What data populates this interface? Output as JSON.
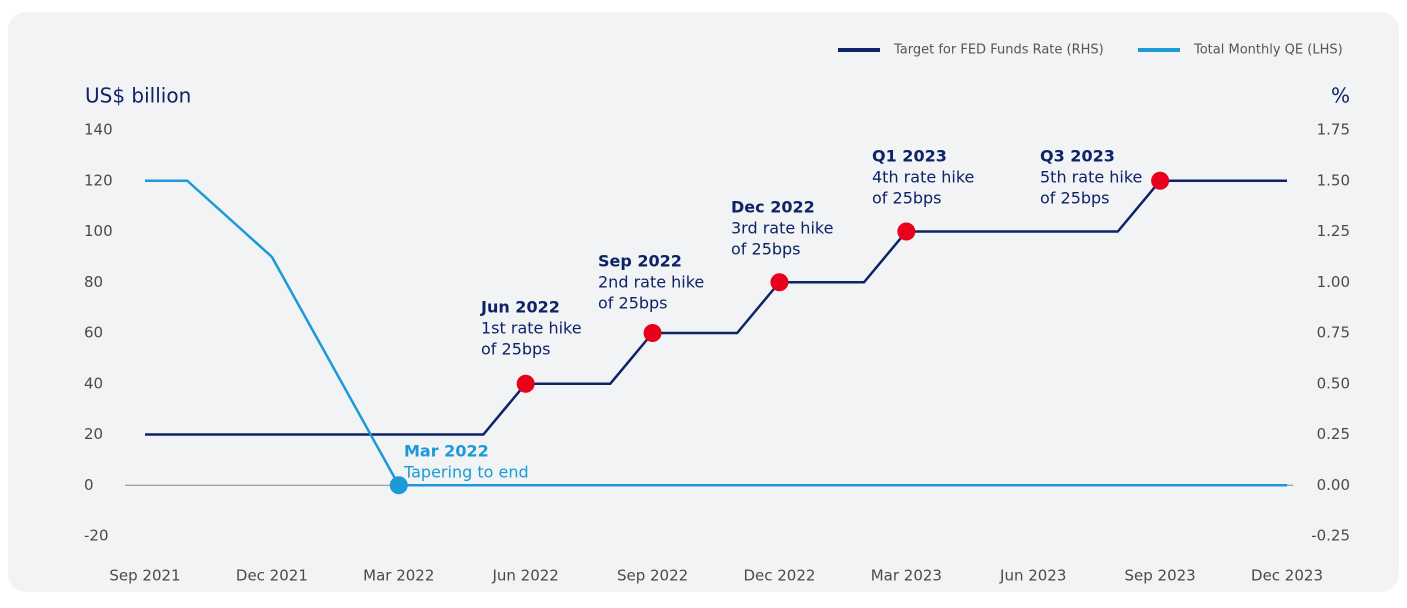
{
  "chart_data": {
    "type": "line",
    "y_label": "US$ billion",
    "y2_label": "%",
    "xlim": [
      0,
      27
    ],
    "xticks": [
      {
        "value": 0,
        "label": "Sep 2021"
      },
      {
        "value": 3,
        "label": "Dec 2021"
      },
      {
        "value": 6,
        "label": "Mar 2022"
      },
      {
        "value": 9,
        "label": "Jun 2022"
      },
      {
        "value": 12,
        "label": "Sep 2022"
      },
      {
        "value": 15,
        "label": "Dec 2022"
      },
      {
        "value": 18,
        "label": "Mar 2023"
      },
      {
        "value": 21,
        "label": "Jun 2023"
      },
      {
        "value": 24,
        "label": "Sep 2023"
      },
      {
        "value": 27,
        "label": "Dec 2023"
      }
    ],
    "ylim": [
      -20,
      140
    ],
    "yticks": [
      -20,
      0,
      20,
      40,
      60,
      80,
      100,
      120,
      140
    ],
    "y2lim": [
      -0.25,
      1.75
    ],
    "y2ticks": [
      {
        "value": -0.25,
        "label": "-0.25"
      },
      {
        "value": 0,
        "label": "0.00"
      },
      {
        "value": 0.25,
        "label": "0.25"
      },
      {
        "value": 0.5,
        "label": "0.50"
      },
      {
        "value": 0.75,
        "label": "0.75"
      },
      {
        "value": 1,
        "label": "1.00"
      },
      {
        "value": 1.25,
        "label": "1.25"
      },
      {
        "value": 1.5,
        "label": "1.50"
      },
      {
        "value": 1.75,
        "label": "1.75"
      }
    ],
    "grid": false,
    "legend": "top-right",
    "series": [
      {
        "name": "Target for FED Funds Rate (RHS)",
        "color": "#0d2366",
        "axis": "y2",
        "x": [
          0,
          8,
          9,
          11,
          12,
          14,
          15,
          17,
          18,
          23,
          24,
          27
        ],
        "values": [
          0.25,
          0.25,
          0.5,
          0.5,
          0.75,
          0.75,
          1.0,
          1.0,
          1.25,
          1.25,
          1.5,
          1.5
        ],
        "highlight": [
          2,
          4,
          6,
          8,
          10
        ],
        "marker_color": "#e8001c"
      },
      {
        "name": "Total Monthly QE (LHS)",
        "color": "#1a9ad6",
        "axis": "y",
        "x": [
          0,
          1,
          3,
          6,
          27
        ],
        "values": [
          120,
          120,
          90,
          0,
          0
        ],
        "highlight": [
          3
        ],
        "marker_color": "#1a9ad6"
      }
    ],
    "annotations": [
      {
        "title": "Mar 2022",
        "lines": [
          "Tapering to end"
        ],
        "color": "#1a9ad6"
      },
      {
        "title": "Jun 2022",
        "lines": [
          "1st rate hike",
          "of 25bps"
        ],
        "color": "#0d2366"
      },
      {
        "title": "Sep 2022",
        "lines": [
          "2nd rate hike",
          "of 25bps"
        ],
        "color": "#0d2366"
      },
      {
        "title": "Dec 2022",
        "lines": [
          "3rd rate hike",
          "of 25bps"
        ],
        "color": "#0d2366"
      },
      {
        "title": "Q1 2023",
        "lines": [
          "4th rate hike",
          "of 25bps"
        ],
        "color": "#0d2366"
      },
      {
        "title": "Q3 2023",
        "lines": [
          "5th rate hike",
          "of 25bps"
        ],
        "color": "#0d2366"
      }
    ]
  }
}
